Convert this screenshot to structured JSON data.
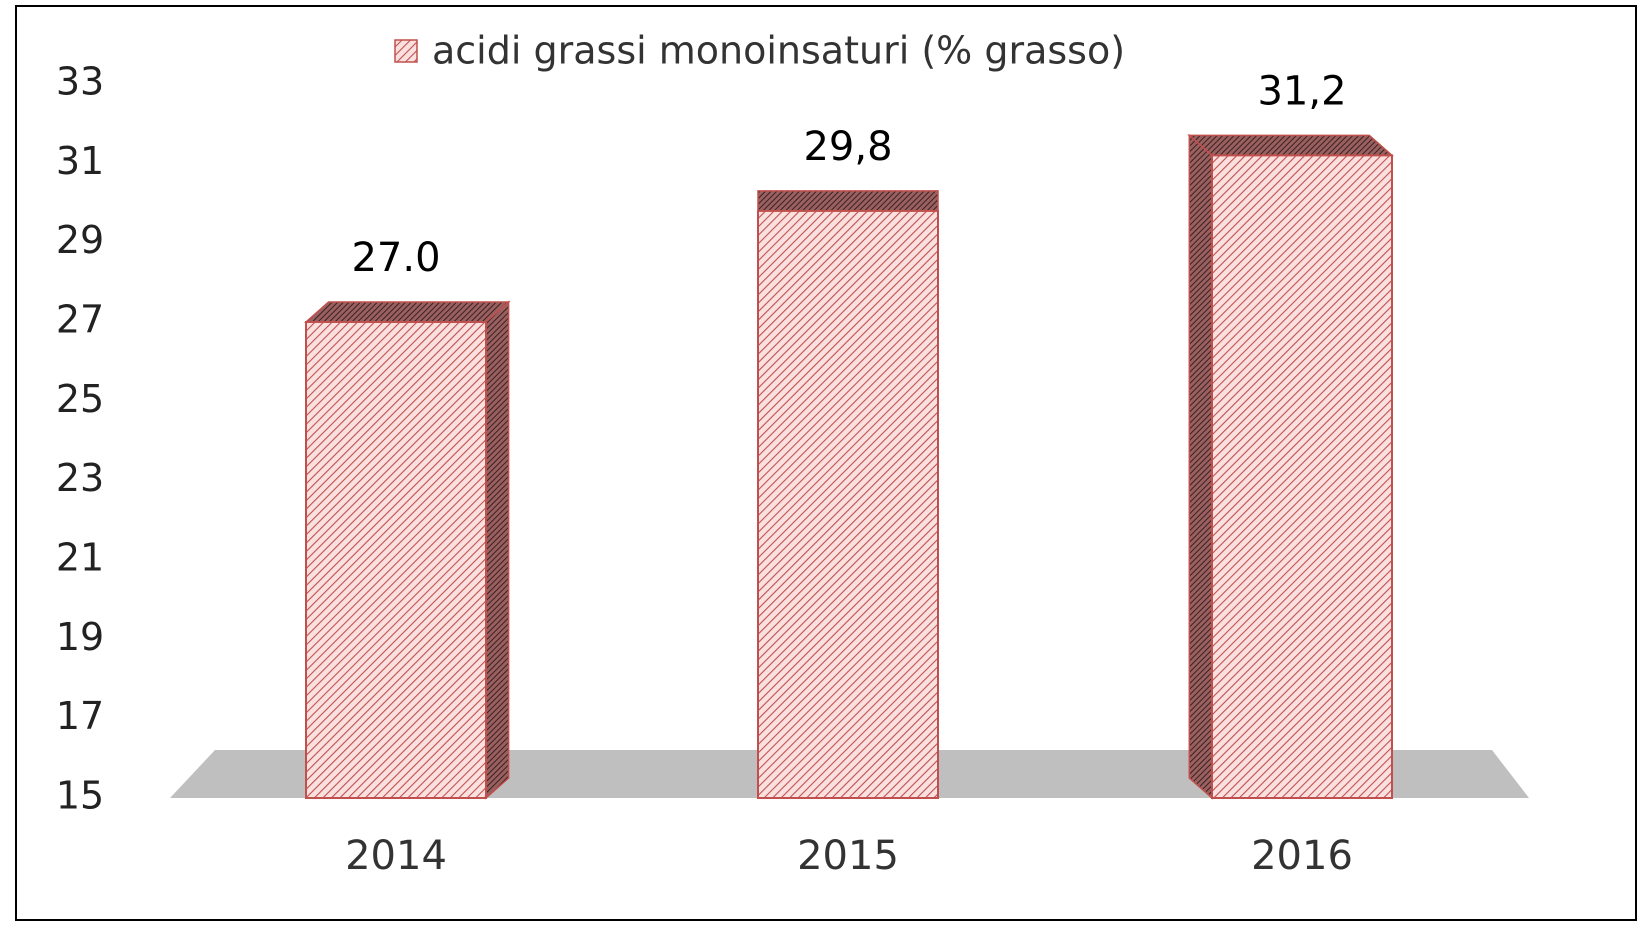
{
  "chart_data": {
    "type": "bar3d",
    "legend_label": "acidi grassi monoinsaturi (% grasso)",
    "categories": [
      "2014",
      "2015",
      "2016"
    ],
    "values": [
      27.0,
      29.8,
      31.2
    ],
    "value_labels": [
      "27.0",
      "29,8",
      "31,2"
    ],
    "color": "#c0504d",
    "ylim": [
      15,
      33
    ],
    "yticks": [
      15,
      17,
      19,
      21,
      23,
      25,
      27,
      29,
      31,
      33
    ]
  }
}
